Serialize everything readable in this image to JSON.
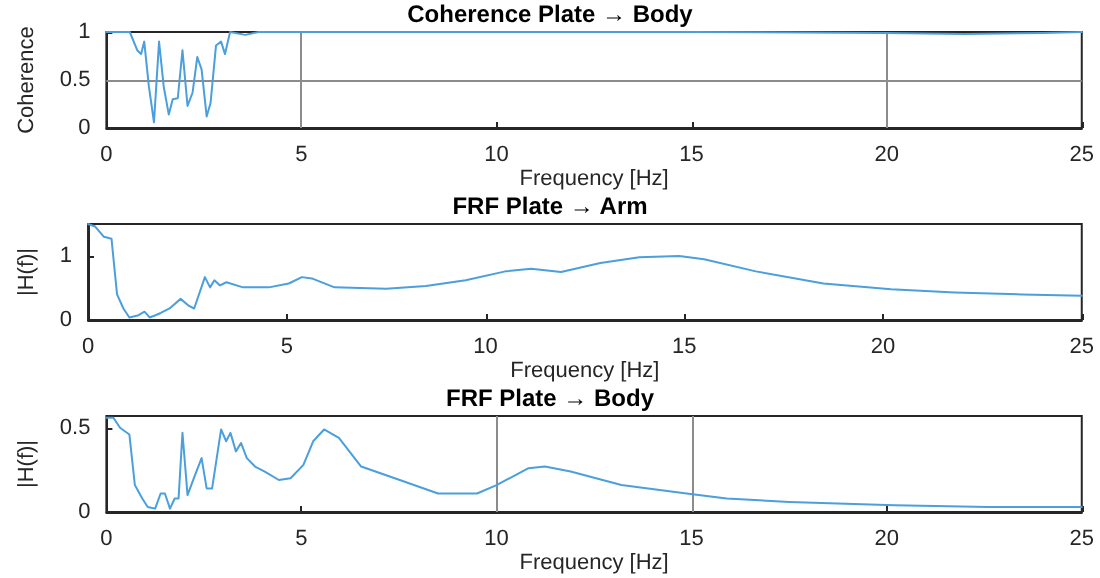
{
  "chart_data": [
    {
      "type": "line",
      "title": "Coherence Plate → Body",
      "xlabel": "Frequency [Hz]",
      "ylabel": "Coherence",
      "xlim": [
        0,
        25
      ],
      "xticks": [
        0,
        5,
        10,
        15,
        20,
        25
      ],
      "ylim": [
        0,
        1
      ],
      "yticks": [
        0,
        0.5,
        1
      ],
      "grid": false,
      "marker": "none",
      "line_style": "solid",
      "ref_lines": [
        {
          "axis": "x",
          "value": 5,
          "label": null,
          "color": "#8c8c8c"
        },
        {
          "axis": "x",
          "value": 20,
          "label": null,
          "color": "#8c8c8c"
        },
        {
          "axis": "y",
          "value": 0.5,
          "label": null,
          "color": "#8c8c8c"
        }
      ],
      "series": [
        {
          "color": "#4a9fdc",
          "x": [
            0,
            0.6,
            0.79,
            0.89,
            0.97,
            1.09,
            1.22,
            1.35,
            1.47,
            1.6,
            1.7,
            1.83,
            1.95,
            2.08,
            2.21,
            2.33,
            2.44,
            2.57,
            2.67,
            2.81,
            2.94,
            3.04,
            3.17,
            3.56,
            3.9,
            5,
            10,
            15,
            20,
            22,
            24,
            25
          ],
          "values": [
            1,
            1,
            0.81,
            0.77,
            0.9,
            0.43,
            0.06,
            0.9,
            0.43,
            0.14,
            0.3,
            0.31,
            0.81,
            0.23,
            0.37,
            0.74,
            0.61,
            0.12,
            0.26,
            0.86,
            0.9,
            0.77,
            1,
            0.97,
            1,
            1,
            1,
            1,
            0.99,
            0.98,
            0.99,
            1
          ]
        }
      ]
    },
    {
      "type": "line",
      "title": "FRF Plate → Arm",
      "xlabel": "Frequency [Hz]",
      "ylabel": "|H(f)|",
      "xlim": [
        0,
        25
      ],
      "xticks": [
        0,
        5,
        10,
        15,
        20,
        25
      ],
      "ylim": [
        0,
        1.5
      ],
      "yticks": [
        0,
        1
      ],
      "grid": false,
      "marker": "none",
      "line_style": "solid",
      "series": [
        {
          "color": "#4a9fdc",
          "x": [
            0,
            0.18,
            0.4,
            0.59,
            0.73,
            0.89,
            1.04,
            1.25,
            1.42,
            1.55,
            1.68,
            1.83,
            2.05,
            2.33,
            2.54,
            2.67,
            2.94,
            3.07,
            3.18,
            3.32,
            3.48,
            3.9,
            4.55,
            5.05,
            5.38,
            5.63,
            6.2,
            7.5,
            8.5,
            9.5,
            10.5,
            11.15,
            11.9,
            12.89,
            13.87,
            14.87,
            15.5,
            16.8,
            18.5,
            20.2,
            21.8,
            23.5,
            25
          ],
          "values": [
            1.5,
            1.46,
            1.3,
            1.27,
            0.4,
            0.18,
            0.04,
            0.07,
            0.13,
            0.04,
            0.07,
            0.11,
            0.18,
            0.33,
            0.22,
            0.18,
            0.67,
            0.51,
            0.62,
            0.54,
            0.59,
            0.51,
            0.51,
            0.57,
            0.67,
            0.65,
            0.51,
            0.49,
            0.53,
            0.62,
            0.76,
            0.8,
            0.75,
            0.89,
            0.98,
            1,
            0.95,
            0.76,
            0.57,
            0.48,
            0.43,
            0.4,
            0.38
          ]
        }
      ]
    },
    {
      "type": "line",
      "title": "FRF Plate → Body",
      "xlabel": "Frequency [Hz]",
      "ylabel": "|H(f)|",
      "xlim": [
        0,
        25
      ],
      "xticks": [
        0,
        5,
        10,
        15,
        20,
        25
      ],
      "ylim": [
        0,
        0.57
      ],
      "yticks": [
        0,
        0.5
      ],
      "grid": false,
      "marker": "none",
      "line_style": "solid",
      "ref_lines": [
        {
          "axis": "x",
          "value": 10,
          "label": null,
          "color": "#8c8c8c"
        },
        {
          "axis": "x",
          "value": 15,
          "label": null,
          "color": "#8c8c8c"
        }
      ],
      "series": [
        {
          "color": "#4a9fdc",
          "x": [
            0,
            0.18,
            0.35,
            0.59,
            0.73,
            0.92,
            1.06,
            1.25,
            1.39,
            1.5,
            1.63,
            1.75,
            1.85,
            1.95,
            2.08,
            2.24,
            2.44,
            2.57,
            2.71,
            2.94,
            3.07,
            3.18,
            3.32,
            3.45,
            3.6,
            3.81,
            4.06,
            4.42,
            4.72,
            5.05,
            5.3,
            5.58,
            5.96,
            6.53,
            7.52,
            8.5,
            9.5,
            10,
            10.82,
            11.24,
            11.9,
            13.2,
            14.87,
            15.9,
            17.5,
            20.2,
            22.6,
            25
          ],
          "values": [
            0.56,
            0.56,
            0.5,
            0.46,
            0.16,
            0.08,
            0.03,
            0.02,
            0.11,
            0.11,
            0.02,
            0.08,
            0.08,
            0.47,
            0.1,
            0.2,
            0.32,
            0.14,
            0.14,
            0.49,
            0.42,
            0.47,
            0.36,
            0.41,
            0.32,
            0.27,
            0.24,
            0.19,
            0.2,
            0.28,
            0.42,
            0.49,
            0.44,
            0.27,
            0.19,
            0.11,
            0.11,
            0.16,
            0.26,
            0.27,
            0.24,
            0.16,
            0.11,
            0.08,
            0.06,
            0.04,
            0.03,
            0.03
          ]
        }
      ]
    }
  ]
}
